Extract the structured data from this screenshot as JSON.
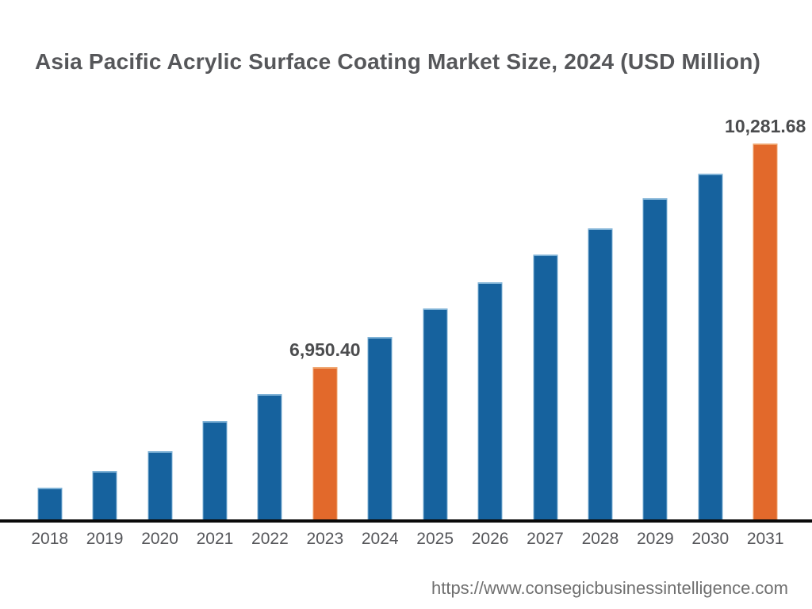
{
  "page": {
    "title": "Asia Pacific Acrylic Surface Coating Market Size, 2024 (USD Million)",
    "footer_url": "https://www.consegicbusinessintelligence.com"
  },
  "colors": {
    "bar_default": "#16629E",
    "bar_default_edge": "#7FB2D6",
    "bar_highlight": "#E2692B",
    "bar_highlight_edge": "#EFA36C",
    "axis": "#0A0A0A",
    "title_text": "#56575A",
    "value_label_text": "#4B4C4E",
    "tick_text": "#55565A",
    "footer_text": "#6F6F6F"
  },
  "chart_data": {
    "type": "bar",
    "title": "Asia Pacific Acrylic Surface Coating Market Size, 2024 (USD Million)",
    "xlabel": "",
    "ylabel": "",
    "unit": "USD Million",
    "categories": [
      "2018",
      "2019",
      "2020",
      "2021",
      "2022",
      "2023",
      "2024",
      "2025",
      "2026",
      "2027",
      "2028",
      "2029",
      "2030",
      "2031"
    ],
    "values": [
      5155,
      5405,
      5700,
      6145,
      6550,
      6950.4,
      7400,
      7825,
      8215,
      8630,
      9020,
      9465,
      9835,
      10281.68
    ],
    "value_labels": [
      "",
      "",
      "",
      "",
      "",
      "6,950.40",
      "",
      "",
      "",
      "",
      "",
      "",
      "",
      "10,281.68"
    ],
    "highlighted_categories": [
      "2023",
      "2031"
    ],
    "labeled_values": {
      "2023": 6950.4,
      "2031": 10281.68
    },
    "ylim": [
      4647,
      10553
    ],
    "grid": false,
    "legend": false
  }
}
